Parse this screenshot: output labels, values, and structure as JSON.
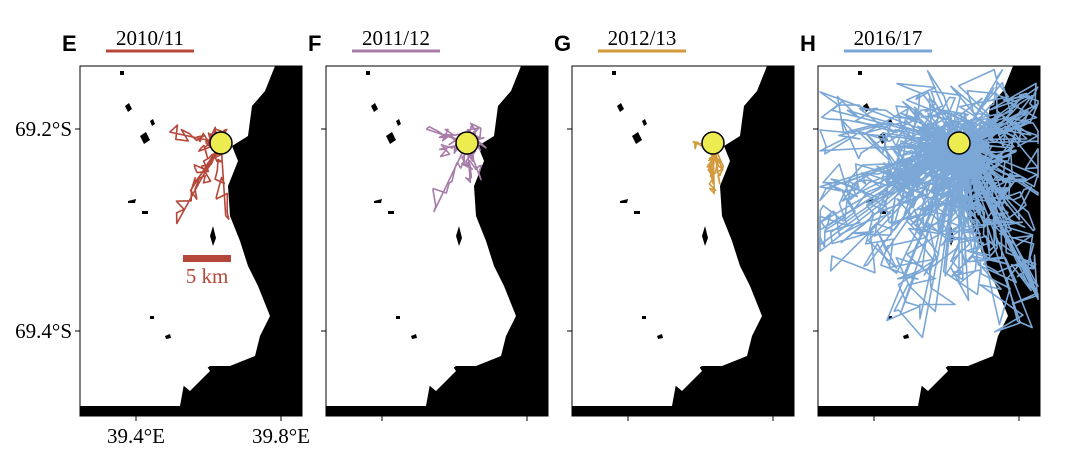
{
  "panels": [
    {
      "letter": "E",
      "season": "2010/11",
      "color": "#b5473a"
    },
    {
      "letter": "F",
      "season": "2011/12",
      "color": "#a87ca8"
    },
    {
      "letter": "G",
      "season": "2012/13",
      "color": "#d39a3c"
    },
    {
      "letter": "H",
      "season": "2016/17",
      "color": "#7ba7d6"
    }
  ],
  "axes": {
    "y_labels": [
      "69.2°S",
      "69.4°S"
    ],
    "x_labels": [
      "39.4°E",
      "39.8°E"
    ]
  },
  "scale_bar": {
    "label": "5 km"
  }
}
